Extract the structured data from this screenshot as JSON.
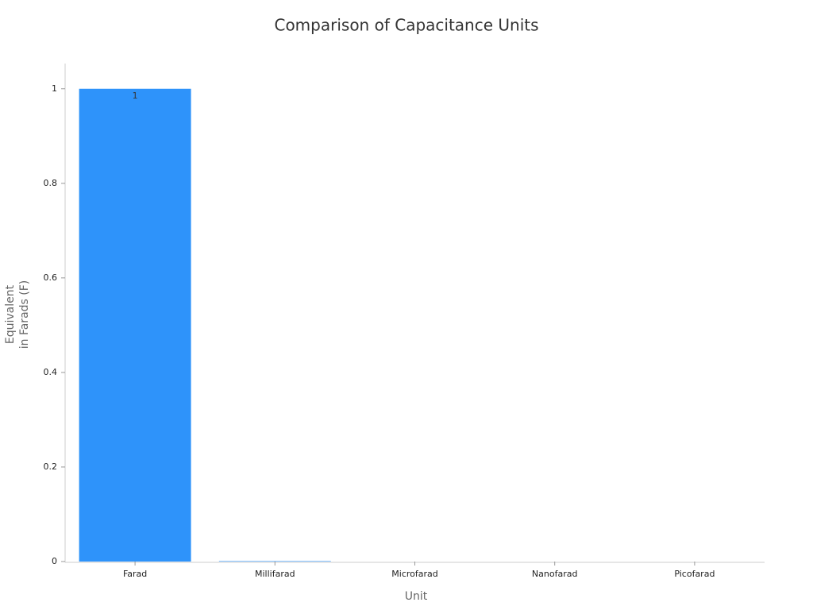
{
  "chart_data": {
    "type": "bar",
    "title": "Comparison of Capacitance Units",
    "xlabel": "Unit",
    "ylabel": [
      "Equivalent",
      "in Farads (F)"
    ],
    "categories": [
      "Farad",
      "Millifarad",
      "Microfarad",
      "Nanofarad",
      "Picofarad"
    ],
    "values": [
      1,
      0.001,
      1e-06,
      1e-09,
      1e-12
    ],
    "value_labels": [
      "1",
      null,
      null,
      null,
      null
    ],
    "color": "#2e93fa",
    "ylim": [
      0,
      1.05
    ],
    "yticks": [
      0,
      0.2,
      0.4,
      0.6,
      0.8,
      1
    ],
    "grid": false
  }
}
